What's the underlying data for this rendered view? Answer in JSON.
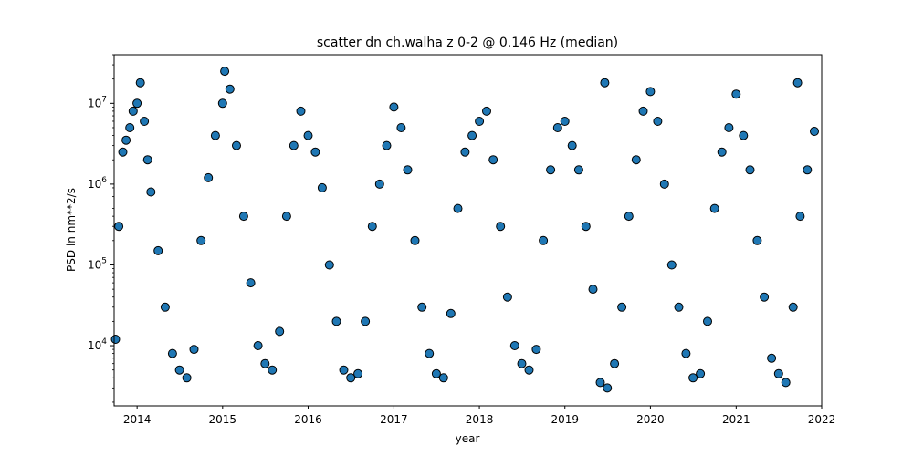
{
  "chart_data": {
    "type": "scatter",
    "title": "scatter dn ch.walha z 0-2 @ 0.146 Hz (median)",
    "xlabel": "year",
    "ylabel": "PSD in nm**2/s",
    "x_scale": "time",
    "y_scale": "log",
    "xlim": [
      "2013-09-25",
      "2022-01-01"
    ],
    "ylim": [
      1800,
      40000000
    ],
    "x_ticks": [
      "2014",
      "2015",
      "2016",
      "2017",
      "2018",
      "2019",
      "2020",
      "2021",
      "2022"
    ],
    "y_ticks": [
      {
        "value": 10000,
        "base": "10",
        "exp": "4"
      },
      {
        "value": 100000,
        "base": "10",
        "exp": "5"
      },
      {
        "value": 1000000,
        "base": "10",
        "exp": "6"
      },
      {
        "value": 10000000,
        "base": "10",
        "exp": "7"
      }
    ],
    "grid": false,
    "legend": "none",
    "marker": "circle",
    "marker_fill": "#1f77b4",
    "marker_edge": "#000000",
    "series": [
      {
        "points": [
          [
            "2013-10-01",
            12000
          ],
          [
            "2013-10-15",
            300000
          ],
          [
            "2013-11-01",
            2500000
          ],
          [
            "2013-11-15",
            3500000
          ],
          [
            "2013-12-01",
            5000000
          ],
          [
            "2013-12-15",
            8000000
          ],
          [
            "2014-01-01",
            10000000
          ],
          [
            "2014-01-15",
            18000000
          ],
          [
            "2014-02-01",
            6000000
          ],
          [
            "2014-02-15",
            2000000
          ],
          [
            "2014-03-01",
            800000
          ],
          [
            "2014-04-01",
            150000
          ],
          [
            "2014-05-01",
            30000
          ],
          [
            "2014-06-01",
            8000
          ],
          [
            "2014-07-01",
            5000
          ],
          [
            "2014-08-01",
            4000
          ],
          [
            "2014-09-01",
            9000
          ],
          [
            "2014-10-01",
            200000
          ],
          [
            "2014-11-01",
            1200000
          ],
          [
            "2014-12-01",
            4000000
          ],
          [
            "2015-01-01",
            10000000
          ],
          [
            "2015-01-10",
            25000000
          ],
          [
            "2015-02-01",
            15000000
          ],
          [
            "2015-03-01",
            3000000
          ],
          [
            "2015-04-01",
            400000
          ],
          [
            "2015-05-01",
            60000
          ],
          [
            "2015-06-01",
            10000
          ],
          [
            "2015-07-01",
            6000
          ],
          [
            "2015-08-01",
            5000
          ],
          [
            "2015-09-01",
            15000
          ],
          [
            "2015-10-01",
            400000
          ],
          [
            "2015-11-01",
            3000000
          ],
          [
            "2015-12-01",
            8000000
          ],
          [
            "2016-01-01",
            4000000
          ],
          [
            "2016-02-01",
            2500000
          ],
          [
            "2016-03-01",
            900000
          ],
          [
            "2016-04-01",
            100000
          ],
          [
            "2016-05-01",
            20000
          ],
          [
            "2016-06-01",
            5000
          ],
          [
            "2016-07-01",
            4000
          ],
          [
            "2016-08-01",
            4500
          ],
          [
            "2016-09-01",
            20000
          ],
          [
            "2016-10-01",
            300000
          ],
          [
            "2016-11-01",
            1000000
          ],
          [
            "2016-12-01",
            3000000
          ],
          [
            "2017-01-01",
            9000000
          ],
          [
            "2017-02-01",
            5000000
          ],
          [
            "2017-03-01",
            1500000
          ],
          [
            "2017-04-01",
            200000
          ],
          [
            "2017-05-01",
            30000
          ],
          [
            "2017-06-01",
            8000
          ],
          [
            "2017-07-01",
            4500
          ],
          [
            "2017-08-01",
            4000
          ],
          [
            "2017-09-01",
            25000
          ],
          [
            "2017-10-01",
            500000
          ],
          [
            "2017-11-01",
            2500000
          ],
          [
            "2017-12-01",
            4000000
          ],
          [
            "2018-01-01",
            6000000
          ],
          [
            "2018-02-01",
            8000000
          ],
          [
            "2018-03-01",
            2000000
          ],
          [
            "2018-04-01",
            300000
          ],
          [
            "2018-05-01",
            40000
          ],
          [
            "2018-06-01",
            10000
          ],
          [
            "2018-07-01",
            6000
          ],
          [
            "2018-08-01",
            5000
          ],
          [
            "2018-09-01",
            9000
          ],
          [
            "2018-10-01",
            200000
          ],
          [
            "2018-11-01",
            1500000
          ],
          [
            "2018-12-01",
            5000000
          ],
          [
            "2019-01-01",
            6000000
          ],
          [
            "2019-02-01",
            3000000
          ],
          [
            "2019-03-01",
            1500000
          ],
          [
            "2019-04-01",
            300000
          ],
          [
            "2019-05-01",
            50000
          ],
          [
            "2019-06-01",
            3500
          ],
          [
            "2019-06-20",
            18000000
          ],
          [
            "2019-07-01",
            3000
          ],
          [
            "2019-08-01",
            6000
          ],
          [
            "2019-09-01",
            30000
          ],
          [
            "2019-10-01",
            400000
          ],
          [
            "2019-11-01",
            2000000
          ],
          [
            "2019-12-01",
            8000000
          ],
          [
            "2020-01-01",
            14000000
          ],
          [
            "2020-02-01",
            6000000
          ],
          [
            "2020-03-01",
            1000000
          ],
          [
            "2020-04-01",
            100000
          ],
          [
            "2020-05-01",
            30000
          ],
          [
            "2020-06-01",
            8000
          ],
          [
            "2020-07-01",
            4000
          ],
          [
            "2020-08-01",
            4500
          ],
          [
            "2020-09-01",
            20000
          ],
          [
            "2020-10-01",
            500000
          ],
          [
            "2020-11-01",
            2500000
          ],
          [
            "2020-12-01",
            5000000
          ],
          [
            "2021-01-01",
            13000000
          ],
          [
            "2021-02-01",
            4000000
          ],
          [
            "2021-03-01",
            1500000
          ],
          [
            "2021-04-01",
            200000
          ],
          [
            "2021-05-01",
            40000
          ],
          [
            "2021-06-01",
            7000
          ],
          [
            "2021-07-01",
            4500
          ],
          [
            "2021-08-01",
            3500
          ],
          [
            "2021-09-01",
            30000
          ],
          [
            "2021-09-20",
            18000000
          ],
          [
            "2021-10-01",
            400000
          ],
          [
            "2021-11-01",
            1500000
          ],
          [
            "2021-12-01",
            4500000
          ]
        ]
      }
    ]
  }
}
